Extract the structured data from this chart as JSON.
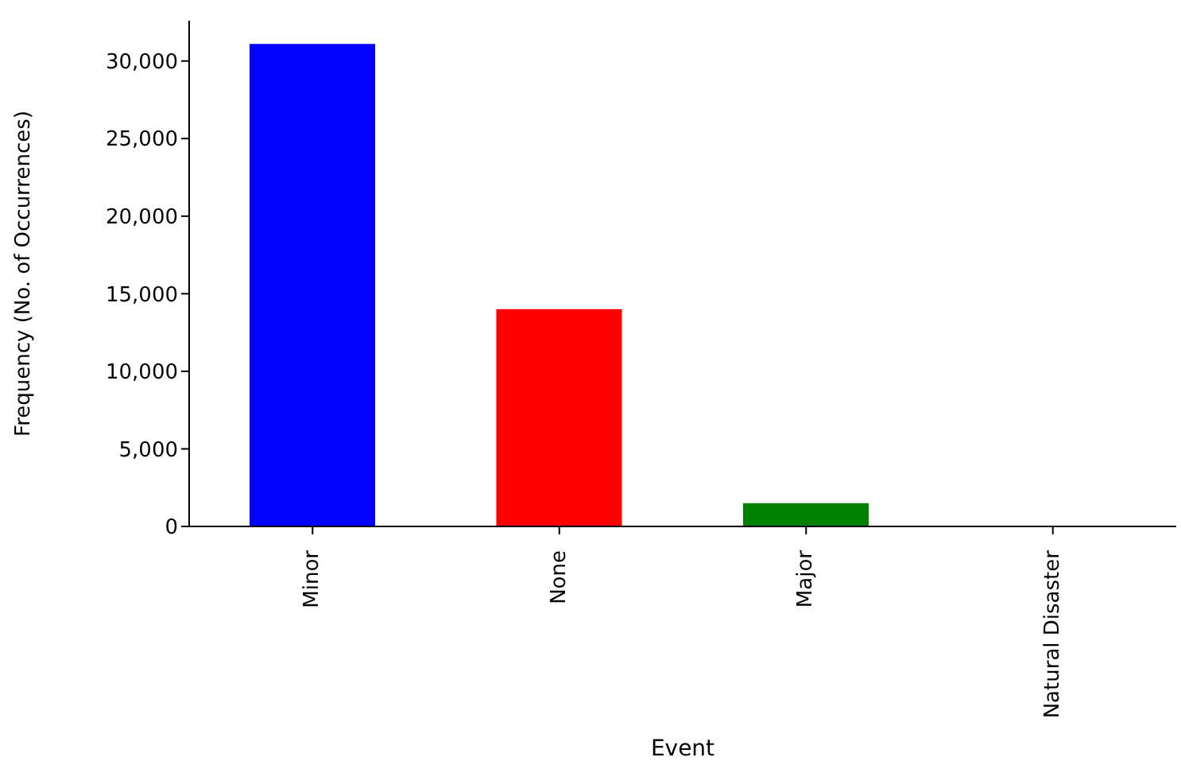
{
  "chart_data": {
    "type": "bar",
    "xlabel": "Event",
    "ylabel": "Frequency (No. of Occurrences)",
    "categories": [
      "Minor",
      "None",
      "Major",
      "Natural Disaster"
    ],
    "values": [
      31100,
      14000,
      1500,
      0
    ],
    "colors": [
      "#0000ff",
      "#ff0000",
      "#008000",
      "#00bfbf"
    ],
    "ylim": [
      0,
      32600
    ],
    "yticks": [
      {
        "value": 0,
        "label": "0"
      },
      {
        "value": 5000,
        "label": "5,000"
      },
      {
        "value": 10000,
        "label": "10,000"
      },
      {
        "value": 15000,
        "label": "15,000"
      },
      {
        "value": 20000,
        "label": "20,000"
      },
      {
        "value": 25000,
        "label": "25,000"
      },
      {
        "value": 30000,
        "label": "30,000"
      }
    ],
    "grid": false,
    "legend": false
  }
}
